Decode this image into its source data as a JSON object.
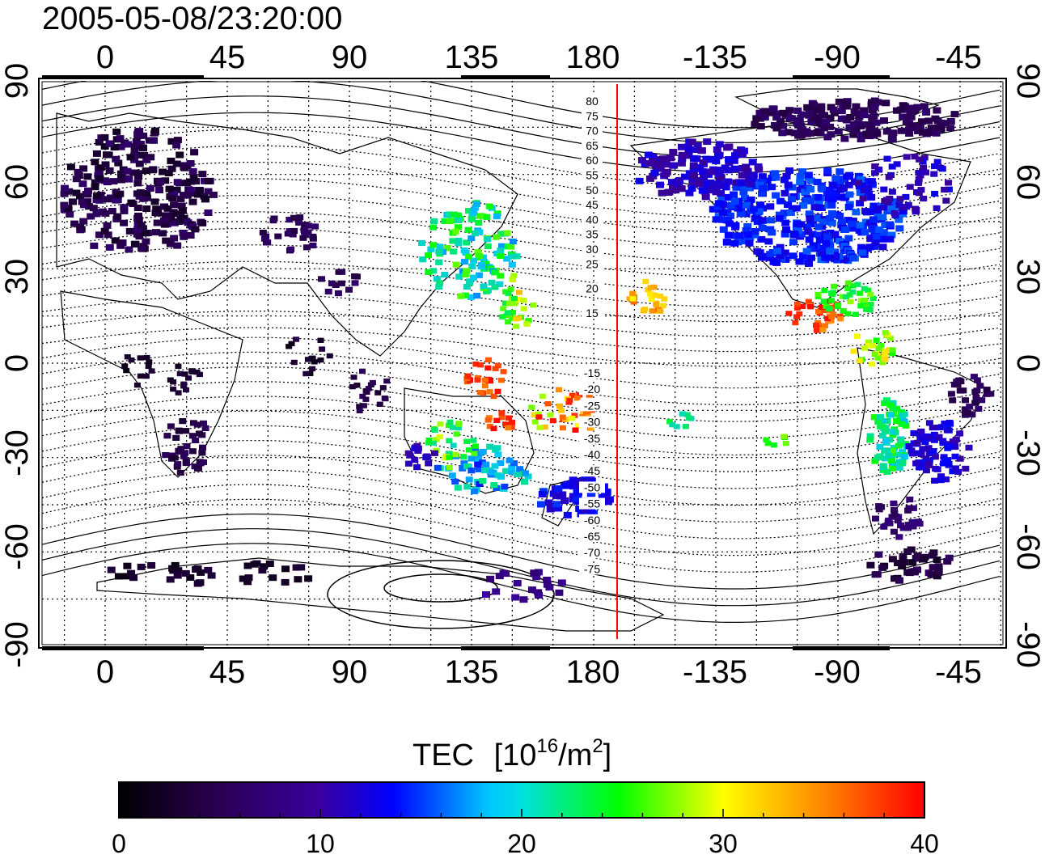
{
  "map": {
    "timestamp": "2005-05-08/23:20:00",
    "top_lon_labels": [
      "0",
      "45",
      "90",
      "135",
      "180",
      "-135",
      "-90",
      "-45"
    ],
    "bottom_lon_labels": [
      "0",
      "45",
      "90",
      "135",
      "180",
      "-135",
      "-90",
      "-45"
    ],
    "left_lat_labels": [
      "90",
      "60",
      "30",
      "0",
      "-30",
      "-60",
      "-90"
    ],
    "right_lat_labels": [
      "90",
      "60",
      "30",
      "0",
      "-30",
      "-60",
      "-90"
    ],
    "mlat_north_labels": [
      "80",
      "75",
      "70",
      "65",
      "60",
      "55",
      "50",
      "45",
      "40",
      "35",
      "30",
      "25",
      "20",
      "15"
    ],
    "mlat_south_labels": [
      "-15",
      "-20",
      "-25",
      "-30",
      "-35",
      "-40",
      "-45",
      "-50",
      "-55",
      "-60",
      "-65",
      "-70",
      "-75"
    ],
    "marker_line_color": "#ff0000",
    "colorbar": {
      "title": "TEC",
      "unit_base": "[10",
      "unit_exp": "16",
      "unit_mid": "/m",
      "unit_exp2": "2",
      "unit_close": "]",
      "tick_labels": [
        "0",
        "10",
        "20",
        "30",
        "40"
      ],
      "range": [
        0,
        40
      ],
      "colors": [
        "#000000",
        "#3a0078",
        "#0000ff",
        "#00ffff",
        "#00ff00",
        "#ffff00",
        "#ff0000"
      ]
    }
  }
}
